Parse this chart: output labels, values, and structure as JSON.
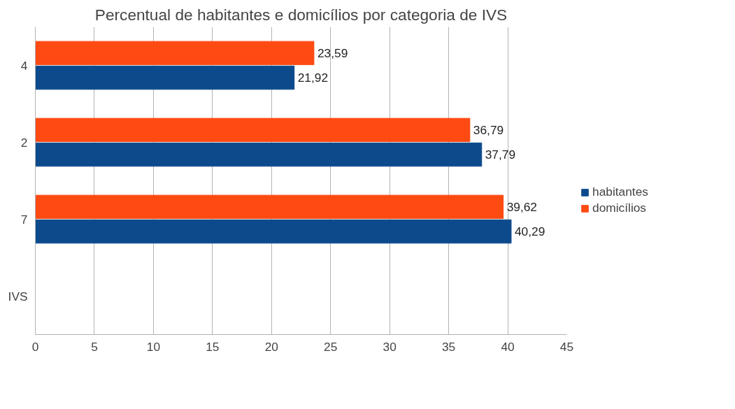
{
  "chart_data": {
    "type": "bar",
    "orientation": "horizontal",
    "title": "Percentual de habitantes e domicílios por categoria de IVS",
    "categories": [
      "4",
      "2",
      "7",
      "IVS"
    ],
    "series": [
      {
        "name": "habitantes",
        "color": "#0c4a8c",
        "values": [
          21.92,
          37.79,
          40.29,
          null
        ],
        "value_labels": [
          "21,92",
          "37,79",
          "40,29",
          null
        ]
      },
      {
        "name": "domicílios",
        "color": "#ff4a12",
        "values": [
          23.59,
          36.79,
          39.62,
          null
        ],
        "value_labels": [
          "23,59",
          "36,79",
          "39,62",
          null
        ]
      }
    ],
    "xlim": [
      0,
      45
    ],
    "xticks": [
      0,
      5,
      10,
      15,
      20,
      25,
      30,
      35,
      40,
      45
    ],
    "grid": "x",
    "legend": "right"
  }
}
